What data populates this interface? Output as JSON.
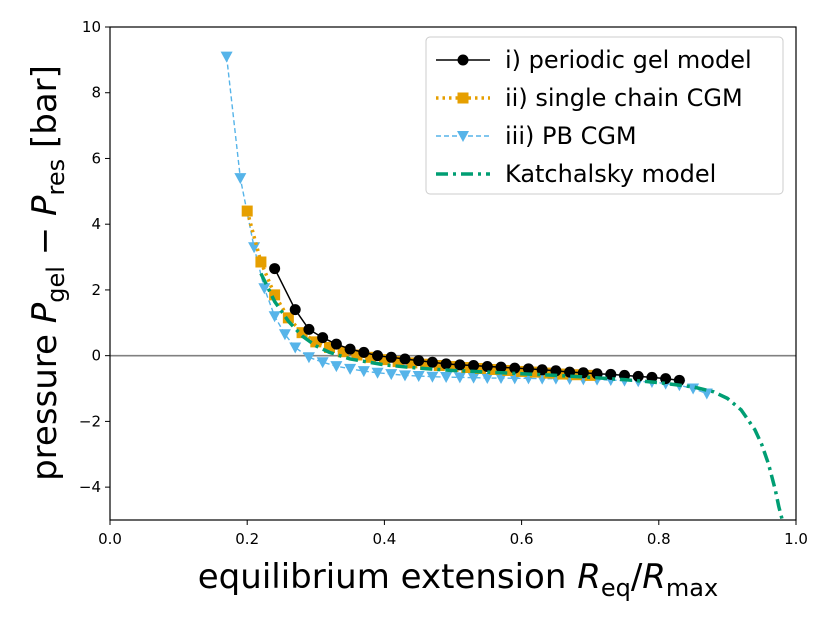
{
  "chart_data": {
    "type": "line",
    "xlabel": {
      "base": "equilibrium extension ",
      "num": "R",
      "num_sub": "eq",
      "slash": "/",
      "den": "R",
      "den_sub": "max"
    },
    "ylabel": {
      "base": "pressure ",
      "a": "P",
      "a_sub": "gel",
      "minus": " − ",
      "b": "P",
      "b_sub": "res",
      "unit": " [bar]"
    },
    "xlim": [
      0.0,
      1.0
    ],
    "ylim": [
      -5,
      10
    ],
    "xticks": [
      0.0,
      0.2,
      0.4,
      0.6,
      0.8,
      1.0
    ],
    "xtick_labels": [
      "0.0",
      "0.2",
      "0.4",
      "0.6",
      "0.8",
      "1.0"
    ],
    "yticks": [
      -4,
      -2,
      0,
      2,
      4,
      6,
      8,
      10
    ],
    "ytick_labels": [
      "−4",
      "−2",
      "0",
      "2",
      "4",
      "6",
      "8",
      "10"
    ],
    "reference_line_y": 0,
    "legend_position": "top-right",
    "series": [
      {
        "name": "i) periodic gel model",
        "color": "#000000",
        "linestyle": "solid",
        "marker": "circle",
        "x": [
          0.24,
          0.27,
          0.29,
          0.31,
          0.33,
          0.35,
          0.37,
          0.39,
          0.41,
          0.43,
          0.45,
          0.47,
          0.49,
          0.51,
          0.53,
          0.55,
          0.57,
          0.59,
          0.61,
          0.63,
          0.65,
          0.67,
          0.69,
          0.71,
          0.73,
          0.75,
          0.77,
          0.79,
          0.81,
          0.83
        ],
        "y": [
          2.65,
          1.4,
          0.8,
          0.55,
          0.35,
          0.2,
          0.1,
          0.0,
          -0.05,
          -0.1,
          -0.15,
          -0.2,
          -0.25,
          -0.28,
          -0.3,
          -0.33,
          -0.35,
          -0.38,
          -0.4,
          -0.43,
          -0.46,
          -0.5,
          -0.52,
          -0.55,
          -0.57,
          -0.6,
          -0.63,
          -0.66,
          -0.7,
          -0.75
        ]
      },
      {
        "name": "ii) single chain CGM",
        "color": "#e69f00",
        "linestyle": "dotted",
        "marker": "square",
        "x": [
          0.2,
          0.22,
          0.24,
          0.26,
          0.28,
          0.3,
          0.32,
          0.34,
          0.36,
          0.38,
          0.4,
          0.42,
          0.44,
          0.46,
          0.48,
          0.5,
          0.52,
          0.54,
          0.56,
          0.58,
          0.6,
          0.62,
          0.64,
          0.66,
          0.68,
          0.7
        ],
        "y": [
          4.4,
          2.85,
          1.85,
          1.15,
          0.7,
          0.42,
          0.25,
          0.12,
          0.02,
          -0.05,
          -0.12,
          -0.18,
          -0.22,
          -0.26,
          -0.3,
          -0.33,
          -0.36,
          -0.39,
          -0.42,
          -0.45,
          -0.48,
          -0.5,
          -0.53,
          -0.56,
          -0.58,
          -0.6
        ]
      },
      {
        "name": "iii) PB CGM",
        "color": "#56b4e9",
        "linestyle": "dashed",
        "marker": "triangle-down",
        "x": [
          0.17,
          0.19,
          0.21,
          0.225,
          0.24,
          0.255,
          0.27,
          0.29,
          0.31,
          0.33,
          0.35,
          0.37,
          0.39,
          0.41,
          0.43,
          0.45,
          0.47,
          0.49,
          0.51,
          0.53,
          0.55,
          0.57,
          0.59,
          0.61,
          0.63,
          0.65,
          0.67,
          0.69,
          0.71,
          0.73,
          0.75,
          0.77,
          0.79,
          0.81,
          0.83,
          0.85,
          0.87
        ],
        "y": [
          9.1,
          5.4,
          3.3,
          2.05,
          1.2,
          0.65,
          0.25,
          -0.05,
          -0.2,
          -0.32,
          -0.4,
          -0.47,
          -0.52,
          -0.56,
          -0.6,
          -0.62,
          -0.64,
          -0.65,
          -0.66,
          -0.67,
          -0.68,
          -0.68,
          -0.69,
          -0.69,
          -0.7,
          -0.7,
          -0.71,
          -0.72,
          -0.73,
          -0.74,
          -0.76,
          -0.78,
          -0.8,
          -0.85,
          -0.9,
          -1.0,
          -1.15
        ]
      },
      {
        "name": "Katchalsky model",
        "color": "#009e73",
        "linestyle": "dashdot",
        "marker": "none",
        "x": [
          0.22,
          0.24,
          0.26,
          0.28,
          0.3,
          0.32,
          0.35,
          0.4,
          0.45,
          0.5,
          0.55,
          0.6,
          0.65,
          0.7,
          0.75,
          0.8,
          0.85,
          0.88,
          0.9,
          0.92,
          0.94,
          0.95,
          0.96,
          0.97,
          0.975,
          0.98
        ],
        "y": [
          2.5,
          1.65,
          1.05,
          0.6,
          0.3,
          0.1,
          -0.1,
          -0.28,
          -0.38,
          -0.45,
          -0.5,
          -0.55,
          -0.6,
          -0.66,
          -0.73,
          -0.82,
          -0.95,
          -1.1,
          -1.3,
          -1.65,
          -2.25,
          -2.7,
          -3.3,
          -4.1,
          -4.6,
          -5.0
        ]
      }
    ]
  }
}
